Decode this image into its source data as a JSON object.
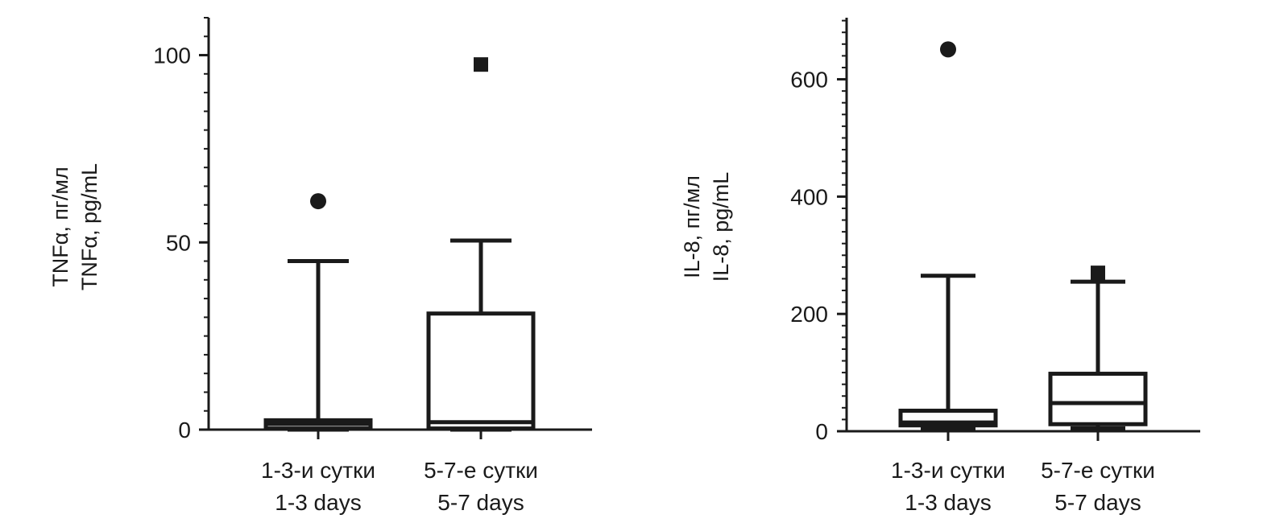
{
  "chart_data": [
    {
      "type": "box",
      "ylabel": [
        "TNFα, пг/мл",
        "TNFα, pg/mL"
      ],
      "ylim": [
        0,
        110
      ],
      "yticks": [
        0,
        50,
        100
      ],
      "minor_tick_step": 5,
      "grid": false,
      "categories": [
        {
          "label": [
            "1-3-и сутки",
            "1-3 days"
          ]
        },
        {
          "label": [
            "5-7-е сутки",
            "5-7 days"
          ]
        }
      ],
      "boxes": [
        {
          "min": 0,
          "q1": 0.3,
          "median": 1.5,
          "q3": 2.5,
          "max": 45,
          "outliers": [
            61
          ],
          "outlier_marker": "circle"
        },
        {
          "min": 0,
          "q1": 0.3,
          "median": 2.0,
          "q3": 31,
          "max": 50.5,
          "outliers": [
            97.5
          ],
          "outlier_marker": "square"
        }
      ]
    },
    {
      "type": "box",
      "ylabel": [
        "IL-8, пг/мл",
        "IL-8, pg/mL"
      ],
      "ylim": [
        0,
        705
      ],
      "yticks": [
        0,
        200,
        400,
        600
      ],
      "minor_tick_step": 20,
      "grid": false,
      "categories": [
        {
          "label": [
            "1-3-и сутки",
            "1-3 days"
          ]
        },
        {
          "label": [
            "5-7-е сутки",
            "5-7 days"
          ]
        }
      ],
      "boxes": [
        {
          "min": 5,
          "q1": 10,
          "median": 15,
          "q3": 35,
          "max": 265,
          "outliers": [
            651
          ],
          "outlier_marker": "circle"
        },
        {
          "min": 5,
          "q1": 12,
          "median": 48,
          "q3": 98,
          "max": 255,
          "outliers": [
            270
          ],
          "outlier_marker": "square"
        }
      ]
    }
  ]
}
